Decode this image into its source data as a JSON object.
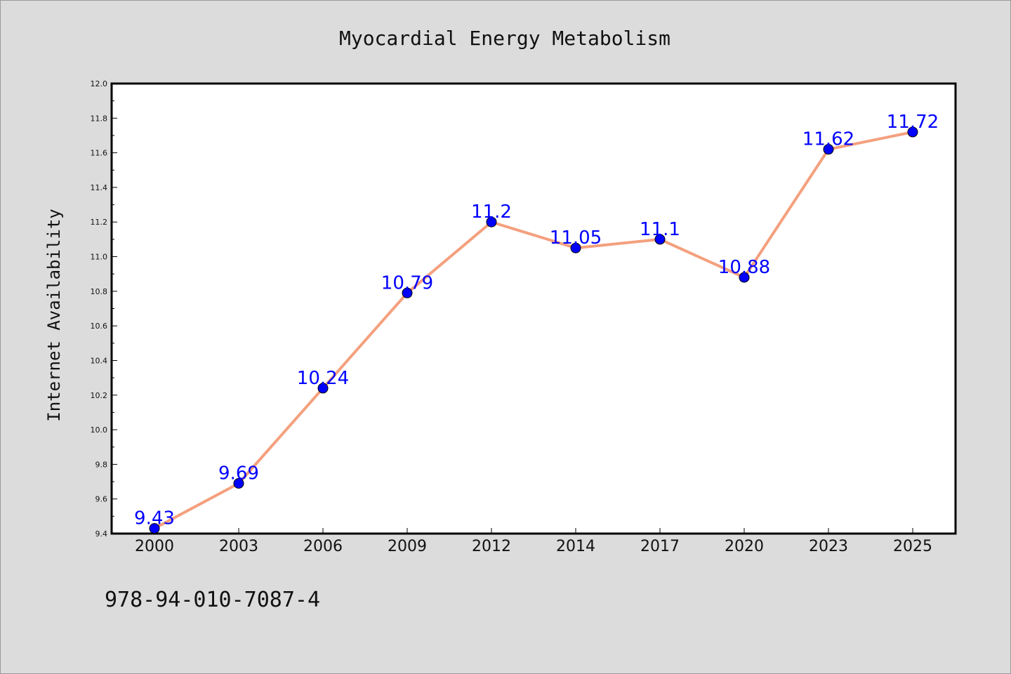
{
  "chart_data": {
    "type": "line",
    "title": "Myocardial Energy Metabolism",
    "xlabel": "",
    "ylabel": "Internet Availability",
    "categories": [
      "2000",
      "2003",
      "2006",
      "2009",
      "2012",
      "2014",
      "2017",
      "2020",
      "2023",
      "2025"
    ],
    "series": [
      {
        "values": [
          9.43,
          9.69,
          10.24,
          10.79,
          11.2,
          11.05,
          11.1,
          10.88,
          11.62,
          11.72
        ],
        "data_labels": [
          "9.43",
          "9.69",
          "10.24",
          "10.79",
          "11.2",
          "11.05",
          "11.1",
          "10.88",
          "11.62",
          "11.72"
        ],
        "line_color": "#f4a07e",
        "marker_color": "#0000ff",
        "label_color": "#0000ff"
      }
    ],
    "ylim": [
      9.4,
      12.0
    ],
    "yticks": [
      "9.4",
      "9.6",
      "9.8",
      "10.0",
      "10.2",
      "10.4",
      "10.6",
      "10.8",
      "11.0",
      "11.2",
      "11.4",
      "11.6",
      "11.8",
      "12.0"
    ],
    "grid": false,
    "legend": "none"
  },
  "footnote": "978-94-010-7087-4",
  "colors": {
    "background": "#dcdcdc",
    "plot_background": "#ffffff",
    "axes": "#000000"
  }
}
